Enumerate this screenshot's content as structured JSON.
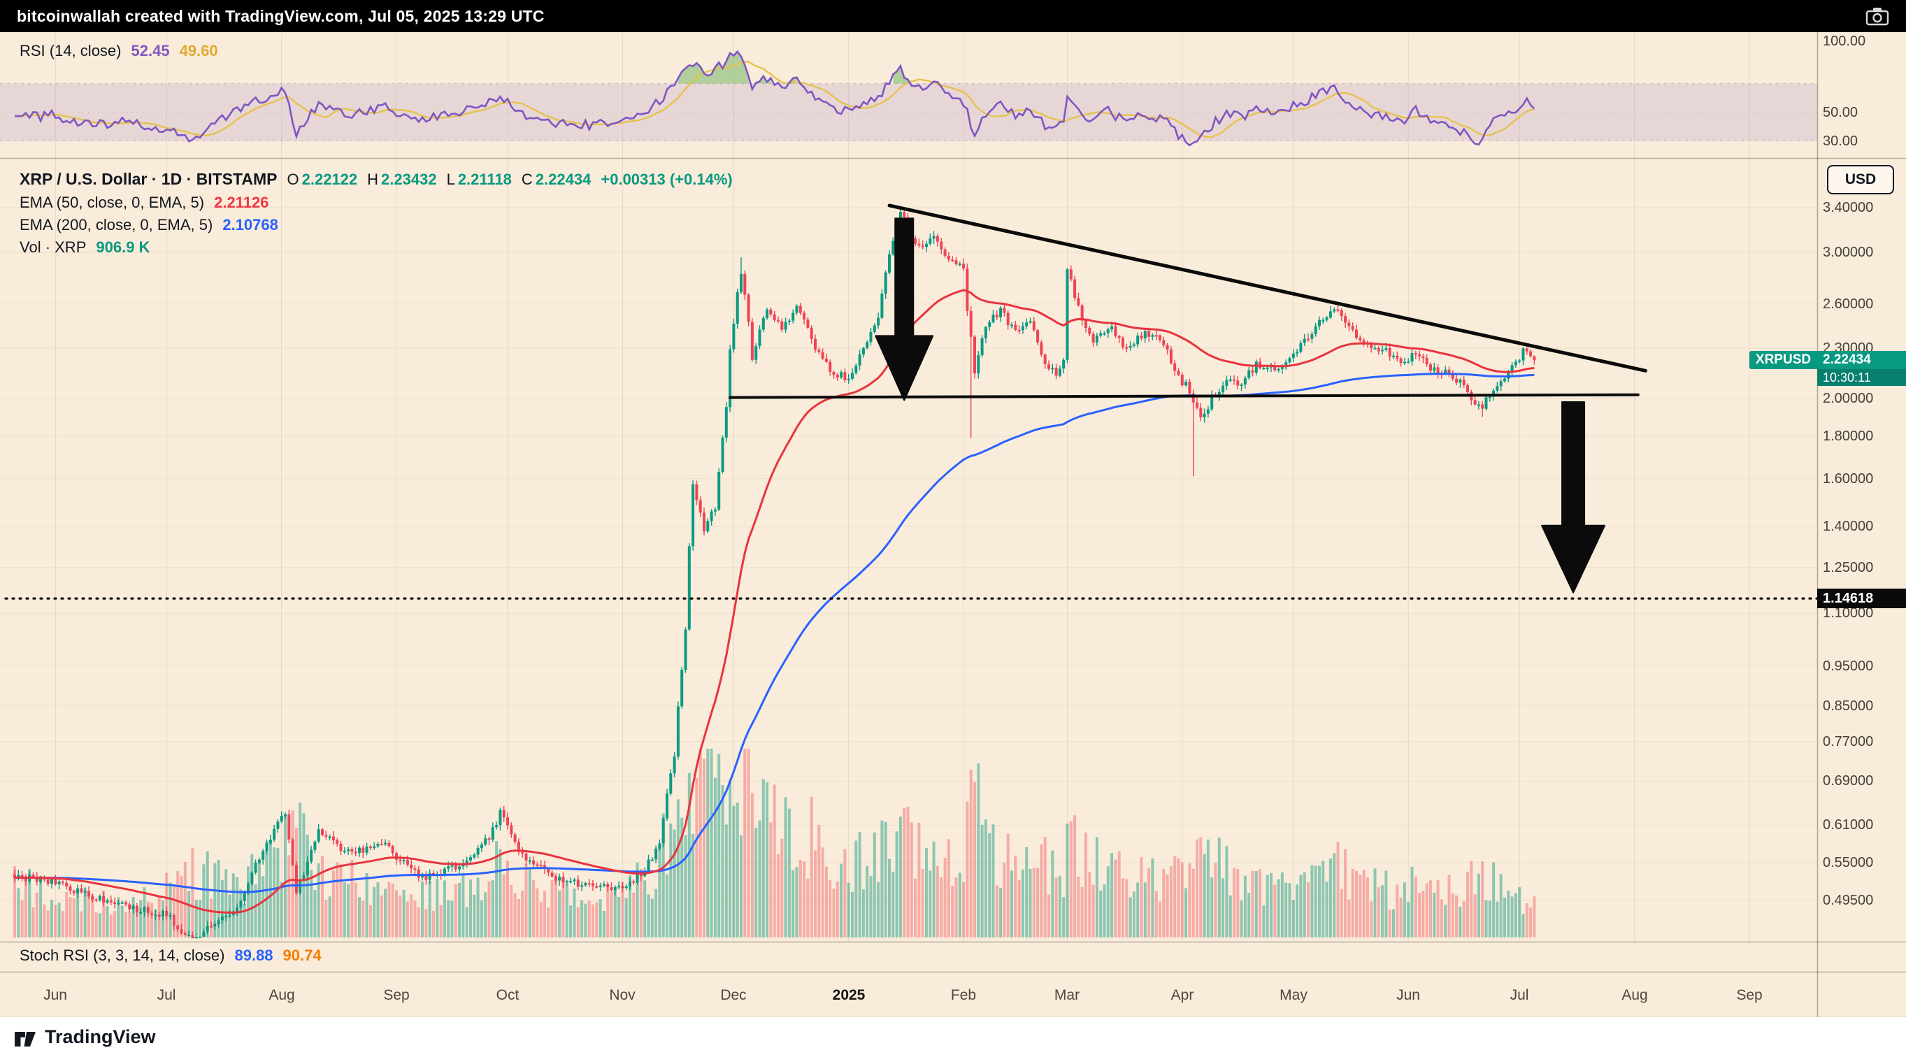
{
  "top_bar": {
    "text": "bitcoinwallah created with TradingView.com, Jul 05, 2025 13:29 UTC"
  },
  "rsi_pane": {
    "label": "RSI (14, close)",
    "value": "52.45",
    "signal_value": "49.60",
    "axis_ticks": [
      {
        "label": "100.00",
        "value": 100
      },
      {
        "label": "50.00",
        "value": 50
      },
      {
        "label": "30.00",
        "value": 30
      }
    ]
  },
  "main_pane": {
    "title": "XRP / U.S. Dollar · 1D · BITSTAMP",
    "ohlc": {
      "open_label": "O",
      "open": "2.22122",
      "high_label": "H",
      "high": "2.23432",
      "low_label": "L",
      "low": "2.21118",
      "close_label": "C",
      "close": "2.22434",
      "change": "+0.00313 (+0.14%)"
    },
    "ema50_label": "EMA (50, close, 0, EMA, 5)",
    "ema50_value": "2.21126",
    "ema200_label": "EMA (200, close, 0, EMA, 5)",
    "ema200_value": "2.10768",
    "vol_label": "Vol · XRP",
    "vol_value": "906.9 K",
    "usd_button": "USD",
    "price_badge": {
      "symbol": "XRPUSD",
      "price": "2.22434",
      "countdown": "10:30:11"
    },
    "target_badge": "1.14618",
    "axis_ticks": [
      {
        "label": "3.40000",
        "value": 3.4
      },
      {
        "label": "3.00000",
        "value": 3.0
      },
      {
        "label": "2.60000",
        "value": 2.6
      },
      {
        "label": "2.30000",
        "value": 2.3
      },
      {
        "label": "2.00000",
        "value": 2.0
      },
      {
        "label": "1.80000",
        "value": 1.8
      },
      {
        "label": "1.60000",
        "value": 1.6
      },
      {
        "label": "1.40000",
        "value": 1.4
      },
      {
        "label": "1.25000",
        "value": 1.25
      },
      {
        "label": "1.10000",
        "value": 1.1
      },
      {
        "label": "0.95000",
        "value": 0.95
      },
      {
        "label": "0.85000",
        "value": 0.85
      },
      {
        "label": "0.77000",
        "value": 0.77
      },
      {
        "label": "0.69000",
        "value": 0.69
      },
      {
        "label": "0.61000",
        "value": 0.61
      },
      {
        "label": "0.55000",
        "value": 0.55
      },
      {
        "label": "0.49500",
        "value": 0.495
      }
    ]
  },
  "stoch_pane": {
    "label": "Stoch RSI (3, 3, 14, 14, close)",
    "k_value": "89.88",
    "d_value": "90.74"
  },
  "time_axis": {
    "labels": [
      {
        "label": "Jun",
        "day": 11
      },
      {
        "label": "Jul",
        "day": 41
      },
      {
        "label": "Aug",
        "day": 72
      },
      {
        "label": "Sep",
        "day": 103
      },
      {
        "label": "Oct",
        "day": 133
      },
      {
        "label": "Nov",
        "day": 164
      },
      {
        "label": "Dec",
        "day": 194
      },
      {
        "label": "2025",
        "day": 225,
        "bold": true
      },
      {
        "label": "Feb",
        "day": 256
      },
      {
        "label": "Mar",
        "day": 284
      },
      {
        "label": "Apr",
        "day": 315
      },
      {
        "label": "May",
        "day": 345
      },
      {
        "label": "Jun",
        "day": 376
      },
      {
        "label": "Jul",
        "day": 406
      },
      {
        "label": "Aug",
        "day": 437
      },
      {
        "label": "Sep",
        "day": 468
      }
    ]
  },
  "bottom_bar": {
    "brand": "TradingView"
  },
  "chart_data": {
    "type": "candlestick",
    "symbol": "XRPUSD",
    "exchange": "BITSTAMP",
    "interval": "1D",
    "scale": "log",
    "title": "XRP / U.S. Dollar",
    "today_ohlc": {
      "open": 2.22122,
      "high": 2.23432,
      "low": 2.21118,
      "close": 2.22434,
      "change": 0.00313,
      "change_pct": 0.14
    },
    "ema50_last": 2.21126,
    "ema200_last": 2.10768,
    "volume_last_label": "906.9 K",
    "rsi_last": 52.45,
    "rsi_signal_last": 49.6,
    "stoch_k": 89.88,
    "stoch_d": 90.74,
    "x_axis": {
      "unit": "days_from_2024-05-21",
      "last_day": 410,
      "last_date_label": "Jul 05, 2025"
    },
    "price_range_visible": [
      0.455,
      3.42
    ],
    "close_path": [
      [
        0,
        0.53
      ],
      [
        11,
        0.52
      ],
      [
        25,
        0.492
      ],
      [
        41,
        0.475
      ],
      [
        48,
        0.442
      ],
      [
        60,
        0.487
      ],
      [
        70,
        0.6
      ],
      [
        73,
        0.635
      ],
      [
        76,
        0.505
      ],
      [
        82,
        0.6
      ],
      [
        90,
        0.565
      ],
      [
        100,
        0.58
      ],
      [
        103,
        0.56
      ],
      [
        110,
        0.525
      ],
      [
        120,
        0.545
      ],
      [
        128,
        0.59
      ],
      [
        131,
        0.63
      ],
      [
        137,
        0.56
      ],
      [
        145,
        0.53
      ],
      [
        155,
        0.515
      ],
      [
        164,
        0.51
      ],
      [
        170,
        0.54
      ],
      [
        174,
        0.58
      ],
      [
        178,
        0.74
      ],
      [
        181,
        1.05
      ],
      [
        183,
        1.58
      ],
      [
        186,
        1.39
      ],
      [
        189,
        1.48
      ],
      [
        192,
        1.95
      ],
      [
        193,
        2.3
      ],
      [
        196,
        2.85
      ],
      [
        199,
        2.25
      ],
      [
        203,
        2.55
      ],
      [
        207,
        2.42
      ],
      [
        211,
        2.6
      ],
      [
        215,
        2.35
      ],
      [
        220,
        2.15
      ],
      [
        225,
        2.12
      ],
      [
        229,
        2.3
      ],
      [
        233,
        2.52
      ],
      [
        236,
        3.0
      ],
      [
        239,
        3.38
      ],
      [
        242,
        3.12
      ],
      [
        245,
        3.05
      ],
      [
        248,
        3.17
      ],
      [
        252,
        2.95
      ],
      [
        256,
        2.88
      ],
      [
        257,
        2.55
      ],
      [
        259,
        2.15
      ],
      [
        262,
        2.45
      ],
      [
        266,
        2.55
      ],
      [
        270,
        2.4
      ],
      [
        274,
        2.5
      ],
      [
        278,
        2.21
      ],
      [
        281,
        2.15
      ],
      [
        283,
        2.23
      ],
      [
        284,
        2.88
      ],
      [
        286,
        2.65
      ],
      [
        288,
        2.48
      ],
      [
        291,
        2.35
      ],
      [
        295,
        2.45
      ],
      [
        300,
        2.3
      ],
      [
        305,
        2.4
      ],
      [
        310,
        2.33
      ],
      [
        314,
        2.12
      ],
      [
        317,
        2.05
      ],
      [
        320,
        1.88
      ],
      [
        323,
        2.0
      ],
      [
        327,
        2.1
      ],
      [
        331,
        2.08
      ],
      [
        335,
        2.2
      ],
      [
        340,
        2.18
      ],
      [
        344,
        2.22
      ],
      [
        347,
        2.32
      ],
      [
        350,
        2.4
      ],
      [
        353,
        2.5
      ],
      [
        356,
        2.58
      ],
      [
        360,
        2.42
      ],
      [
        364,
        2.35
      ],
      [
        368,
        2.3
      ],
      [
        372,
        2.25
      ],
      [
        375,
        2.21
      ],
      [
        378,
        2.28
      ],
      [
        382,
        2.18
      ],
      [
        386,
        2.15
      ],
      [
        390,
        2.1
      ],
      [
        393,
        1.99
      ],
      [
        396,
        1.96
      ],
      [
        399,
        2.06
      ],
      [
        402,
        2.13
      ],
      [
        405,
        2.21
      ],
      [
        407,
        2.28
      ],
      [
        409,
        2.24
      ],
      [
        410,
        2.22434
      ]
    ],
    "volume_path": [
      [
        0,
        0.3
      ],
      [
        15,
        0.22
      ],
      [
        30,
        0.2
      ],
      [
        41,
        0.26
      ],
      [
        48,
        0.38
      ],
      [
        60,
        0.26
      ],
      [
        70,
        0.48
      ],
      [
        76,
        0.58
      ],
      [
        82,
        0.36
      ],
      [
        95,
        0.3
      ],
      [
        110,
        0.24
      ],
      [
        120,
        0.26
      ],
      [
        131,
        0.42
      ],
      [
        140,
        0.28
      ],
      [
        155,
        0.22
      ],
      [
        164,
        0.22
      ],
      [
        172,
        0.38
      ],
      [
        176,
        0.6
      ],
      [
        180,
        0.8
      ],
      [
        184,
        0.95
      ],
      [
        188,
        1.0
      ],
      [
        193,
        0.95
      ],
      [
        196,
        1.0
      ],
      [
        200,
        0.82
      ],
      [
        205,
        0.68
      ],
      [
        211,
        0.64
      ],
      [
        218,
        0.5
      ],
      [
        225,
        0.42
      ],
      [
        231,
        0.48
      ],
      [
        236,
        0.55
      ],
      [
        239,
        0.66
      ],
      [
        244,
        0.55
      ],
      [
        250,
        0.48
      ],
      [
        256,
        0.46
      ],
      [
        258,
        0.82
      ],
      [
        263,
        0.52
      ],
      [
        270,
        0.42
      ],
      [
        278,
        0.4
      ],
      [
        283,
        0.36
      ],
      [
        284,
        0.62
      ],
      [
        288,
        0.46
      ],
      [
        295,
        0.36
      ],
      [
        302,
        0.32
      ],
      [
        310,
        0.31
      ],
      [
        314,
        0.36
      ],
      [
        319,
        0.52
      ],
      [
        325,
        0.4
      ],
      [
        331,
        0.32
      ],
      [
        340,
        0.29
      ],
      [
        348,
        0.33
      ],
      [
        356,
        0.42
      ],
      [
        364,
        0.3
      ],
      [
        372,
        0.26
      ],
      [
        378,
        0.29
      ],
      [
        386,
        0.24
      ],
      [
        393,
        0.31
      ],
      [
        396,
        0.36
      ],
      [
        402,
        0.25
      ],
      [
        410,
        0.2
      ]
    ],
    "rsi_path": [
      [
        0,
        46
      ],
      [
        11,
        48
      ],
      [
        20,
        41
      ],
      [
        30,
        43
      ],
      [
        41,
        38
      ],
      [
        48,
        31
      ],
      [
        55,
        45
      ],
      [
        65,
        58
      ],
      [
        73,
        66
      ],
      [
        76,
        36
      ],
      [
        82,
        55
      ],
      [
        90,
        49
      ],
      [
        100,
        53
      ],
      [
        110,
        45
      ],
      [
        120,
        50
      ],
      [
        131,
        60
      ],
      [
        137,
        49
      ],
      [
        145,
        43
      ],
      [
        155,
        41
      ],
      [
        164,
        43
      ],
      [
        170,
        50
      ],
      [
        174,
        58
      ],
      [
        178,
        70
      ],
      [
        181,
        78
      ],
      [
        183,
        84
      ],
      [
        186,
        76
      ],
      [
        189,
        80
      ],
      [
        193,
        88
      ],
      [
        196,
        91
      ],
      [
        199,
        68
      ],
      [
        203,
        74
      ],
      [
        207,
        67
      ],
      [
        211,
        72
      ],
      [
        215,
        61
      ],
      [
        220,
        52
      ],
      [
        225,
        50
      ],
      [
        229,
        56
      ],
      [
        233,
        61
      ],
      [
        236,
        70
      ],
      [
        239,
        79
      ],
      [
        242,
        68
      ],
      [
        245,
        65
      ],
      [
        248,
        71
      ],
      [
        252,
        61
      ],
      [
        256,
        57
      ],
      [
        259,
        34
      ],
      [
        262,
        49
      ],
      [
        266,
        55
      ],
      [
        270,
        47
      ],
      [
        274,
        52
      ],
      [
        278,
        40
      ],
      [
        283,
        43
      ],
      [
        284,
        61
      ],
      [
        288,
        50
      ],
      [
        291,
        44
      ],
      [
        295,
        51
      ],
      [
        300,
        42
      ],
      [
        305,
        49
      ],
      [
        310,
        45
      ],
      [
        314,
        34
      ],
      [
        318,
        27
      ],
      [
        323,
        41
      ],
      [
        327,
        49
      ],
      [
        331,
        46
      ],
      [
        335,
        53
      ],
      [
        340,
        50
      ],
      [
        344,
        53
      ],
      [
        350,
        60
      ],
      [
        356,
        67
      ],
      [
        360,
        54
      ],
      [
        364,
        50
      ],
      [
        368,
        47
      ],
      [
        372,
        44
      ],
      [
        375,
        42
      ],
      [
        378,
        51
      ],
      [
        382,
        44
      ],
      [
        386,
        42
      ],
      [
        390,
        37
      ],
      [
        393,
        31
      ],
      [
        396,
        30
      ],
      [
        399,
        43
      ],
      [
        402,
        49
      ],
      [
        405,
        53
      ],
      [
        408,
        57
      ],
      [
        410,
        52.45
      ]
    ],
    "wick_events": [
      {
        "day": 196,
        "high": 2.96
      },
      {
        "day": 239,
        "high": 3.4
      },
      {
        "day": 258,
        "low": 1.79
      },
      {
        "day": 318,
        "low": 1.61
      },
      {
        "day": 396,
        "low": 1.9
      }
    ],
    "annotations": {
      "upper_trendline": {
        "from": [
          236,
          3.42
        ],
        "to": [
          440,
          2.16
        ]
      },
      "support_line": {
        "from": [
          193,
          2.005
        ],
        "to": [
          438,
          2.02
        ]
      },
      "down_arrow_1": {
        "day": 240,
        "from_price": 3.3,
        "to_price": 1.99
      },
      "down_arrow_2": {
        "day": 420.5,
        "from_price": 1.98,
        "to_price": 1.165
      },
      "dotted_target_level": 1.14618
    },
    "colors": {
      "background": "#f9ecda",
      "candle_up": "#0a9a82",
      "candle_down": "#ef4456",
      "ema50": "#e8343f",
      "ema200": "#2962ff",
      "rsi": "#7e57c2",
      "rsi_signal": "#e6c24f",
      "rsi_band": "rgba(126,87,194,0.14)",
      "rsi_overbought_fill": "rgba(105,178,92,0.5)",
      "vol_up": "rgba(8,153,129,0.45)",
      "vol_down": "rgba(242,54,69,0.35)",
      "badge_green": "#089981",
      "badge_black": "#0a0a0a",
      "annotation": "#0b0b0b"
    }
  }
}
